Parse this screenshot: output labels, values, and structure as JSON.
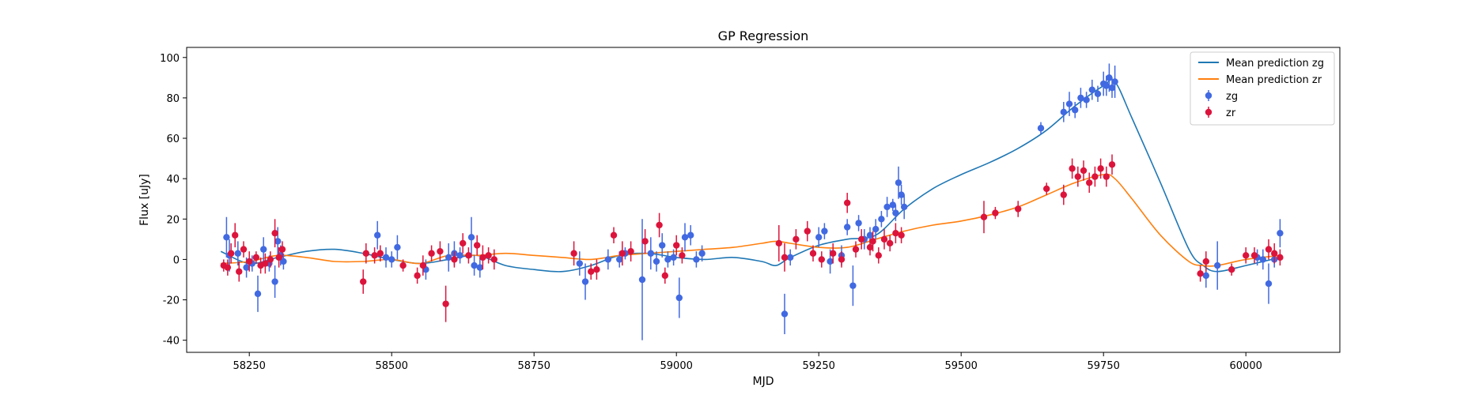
{
  "chart_data": {
    "type": "scatter",
    "title": "GP Regression",
    "xlabel": "MJD",
    "ylabel": "Flux [uJy]",
    "xlim": [
      58140,
      60165
    ],
    "ylim": [
      -46,
      105
    ],
    "xticks": [
      58250,
      58500,
      58750,
      59000,
      59250,
      59500,
      59750,
      60000
    ],
    "yticks": [
      -40,
      -20,
      0,
      20,
      40,
      60,
      80,
      100
    ],
    "grid": false,
    "legend_position": "top-right",
    "legend": [
      "Mean prediction zg",
      "Mean prediction zr",
      "zg",
      "zr"
    ],
    "colors": {
      "mean_zg": "#1f77b4",
      "mean_zr": "#ff7f0e",
      "zg": "#4169e1",
      "zr": "#dc143c"
    },
    "mean_series": [
      {
        "name": "Mean prediction zg",
        "x": [
          58200,
          58250,
          58300,
          58350,
          58400,
          58450,
          58500,
          58550,
          58600,
          58650,
          58700,
          58750,
          58800,
          58850,
          58900,
          58950,
          59000,
          59050,
          59100,
          59150,
          59175,
          59200,
          59250,
          59300,
          59350,
          59400,
          59450,
          59500,
          59550,
          59600,
          59650,
          59700,
          59750,
          59770,
          59800,
          59850,
          59900,
          59925,
          59950,
          60000,
          60060
        ],
        "y": [
          4,
          -2,
          1,
          4,
          5,
          3,
          0,
          -2,
          0,
          2,
          -3,
          -5,
          -6,
          -3,
          2,
          3,
          1,
          0,
          1,
          -1,
          -3,
          1,
          7,
          10,
          12,
          25,
          35,
          42,
          48,
          55,
          64,
          76,
          86,
          88,
          70,
          38,
          5,
          -3,
          -6,
          -3,
          1
        ]
      },
      {
        "name": "Mean prediction zr",
        "x": [
          58200,
          58250,
          58300,
          58350,
          58400,
          58450,
          58500,
          58550,
          58600,
          58650,
          58700,
          58750,
          58800,
          58850,
          58900,
          58950,
          59000,
          59050,
          59100,
          59150,
          59175,
          59200,
          59250,
          59300,
          59350,
          59400,
          59450,
          59500,
          59550,
          59600,
          59650,
          59700,
          59750,
          59770,
          59800,
          59850,
          59900,
          59925,
          59950,
          60000,
          60060
        ],
        "y": [
          -2,
          -1,
          2,
          1,
          -1,
          -1,
          0,
          -2,
          2,
          2,
          3,
          2,
          1,
          0,
          2,
          3,
          4,
          5,
          6,
          8,
          9,
          8,
          6,
          6,
          10,
          14,
          17,
          19,
          22,
          26,
          32,
          38,
          42,
          40,
          30,
          12,
          -1,
          -3,
          -3,
          0,
          2
        ]
      }
    ],
    "series": [
      {
        "name": "zg",
        "x": [
          58210,
          58215,
          58230,
          58245,
          58255,
          58265,
          58275,
          58285,
          58295,
          58300,
          58305,
          58310,
          58475,
          58490,
          58500,
          58510,
          58560,
          58600,
          58610,
          58620,
          58640,
          58645,
          58655,
          58830,
          58840,
          58880,
          58900,
          58910,
          58940,
          58955,
          58965,
          58975,
          58985,
          58995,
          59005,
          59015,
          59025,
          59035,
          59045,
          59190,
          59200,
          59250,
          59260,
          59270,
          59290,
          59300,
          59310,
          59320,
          59330,
          59340,
          59350,
          59360,
          59370,
          59380,
          59385,
          59390,
          59395,
          59400,
          59640,
          59680,
          59690,
          59700,
          59710,
          59720,
          59730,
          59740,
          59750,
          59755,
          59760,
          59765,
          59770,
          59930,
          59950,
          60020,
          60030,
          60040,
          60050,
          60060
        ],
        "y": [
          11,
          2,
          3,
          -4,
          -2,
          -17,
          5,
          -2,
          -11,
          9,
          2,
          -1,
          12,
          1,
          0,
          6,
          -5,
          1,
          3,
          2,
          11,
          -3,
          -4,
          -2,
          -11,
          0,
          0,
          3,
          -10,
          3,
          -1,
          7,
          0,
          1,
          -19,
          11,
          12,
          0,
          3,
          -27,
          1,
          11,
          14,
          -1,
          2,
          16,
          -13,
          18,
          10,
          12,
          15,
          20,
          26,
          27,
          23,
          38,
          32,
          26,
          65,
          73,
          77,
          74,
          80,
          79,
          84,
          82,
          87,
          86,
          90,
          85,
          88,
          -8,
          -3,
          1,
          0,
          -12,
          0,
          13
        ]
      },
      {
        "name": "zr",
        "x": [
          58205,
          58212,
          58218,
          58225,
          58232,
          58240,
          58250,
          58262,
          58270,
          58278,
          58287,
          58295,
          58302,
          58308,
          58450,
          58455,
          58470,
          58480,
          58520,
          58545,
          58555,
          58570,
          58585,
          58595,
          58610,
          58625,
          58635,
          58650,
          58660,
          58670,
          58680,
          58820,
          58850,
          58860,
          58890,
          58905,
          58920,
          58945,
          58970,
          58980,
          59000,
          59010,
          59180,
          59190,
          59210,
          59230,
          59240,
          59255,
          59275,
          59290,
          59300,
          59315,
          59325,
          59340,
          59345,
          59355,
          59365,
          59375,
          59385,
          59395,
          59540,
          59560,
          59600,
          59650,
          59680,
          59695,
          59705,
          59715,
          59725,
          59735,
          59745,
          59755,
          59765,
          59920,
          59930,
          59975,
          60000,
          60015,
          60040,
          60050,
          60060
        ],
        "y": [
          -3,
          -4,
          3,
          12,
          -6,
          5,
          -1,
          1,
          -3,
          -2,
          0,
          13,
          1,
          5,
          -11,
          3,
          2,
          3,
          -3,
          -8,
          -3,
          3,
          4,
          -22,
          0,
          8,
          2,
          7,
          1,
          2,
          0,
          3,
          -6,
          -5,
          12,
          3,
          4,
          9,
          17,
          -8,
          7,
          2,
          8,
          1,
          10,
          14,
          3,
          0,
          3,
          0,
          28,
          5,
          10,
          6,
          9,
          2,
          10,
          8,
          13,
          12,
          21,
          23,
          25,
          35,
          32,
          45,
          41,
          44,
          38,
          41,
          45,
          41,
          47,
          -7,
          -1,
          -5,
          2,
          2,
          5,
          3,
          1
        ]
      }
    ],
    "errors_zg": [
      10,
      8,
      6,
      5,
      4,
      9,
      6,
      4,
      8,
      7,
      5,
      4,
      7,
      5,
      4,
      6,
      5,
      7,
      6,
      4,
      10,
      5,
      5,
      6,
      9,
      5,
      4,
      3,
      30,
      8,
      5,
      6,
      4,
      4,
      10,
      7,
      5,
      4,
      4,
      10,
      4,
      5,
      4,
      6,
      5,
      4,
      10,
      4,
      5,
      4,
      5,
      4,
      5,
      3,
      4,
      8,
      5,
      6,
      3,
      5,
      6,
      4,
      5,
      4,
      5,
      4,
      6,
      5,
      7,
      5,
      8,
      6,
      12,
      4,
      5,
      10,
      4,
      7
    ],
    "errors_zr": [
      3,
      4,
      5,
      6,
      5,
      4,
      5,
      3,
      4,
      5,
      4,
      7,
      5,
      4,
      6,
      5,
      4,
      4,
      3,
      4,
      5,
      4,
      5,
      9,
      4,
      5,
      4,
      5,
      6,
      4,
      5,
      6,
      4,
      5,
      4,
      6,
      5,
      6,
      6,
      4,
      5,
      4,
      9,
      7,
      5,
      5,
      4,
      4,
      5,
      4,
      5,
      4,
      5,
      4,
      5,
      4,
      5,
      4,
      5,
      4,
      8,
      3,
      4,
      3,
      5,
      5,
      5,
      5,
      5,
      5,
      5,
      5,
      5,
      4,
      5,
      3,
      4,
      4,
      5,
      5,
      4
    ]
  }
}
